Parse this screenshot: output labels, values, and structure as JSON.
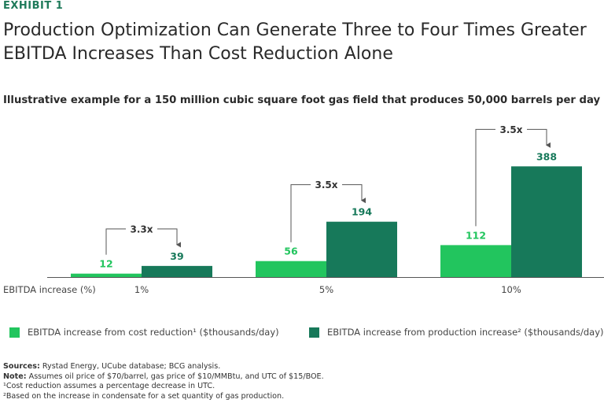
{
  "exhibit_label": "EXHIBIT 1",
  "title": "Production Optimization Can Generate Three to Four Times Greater EBITDA Increases Than Cost Reduction Alone",
  "subtitle": "Illustrative example for a 150 million cubic square foot gas field that produces 50,000 barrels per day",
  "colors": {
    "cost": "#22c55e",
    "production": "#17795a",
    "accent": "#1f7a5a",
    "axis": "#555555"
  },
  "chart_data": {
    "type": "bar",
    "title": "Illustrative example for a 150 million cubic square foot gas field that produces 50,000 barrels per day",
    "xlabel": "EBITDA increase (%)",
    "ylabel": "",
    "categories": [
      "1%",
      "5%",
      "10%"
    ],
    "series": [
      {
        "name": "EBITDA increase from cost reduction¹ ($thousands/day)",
        "values": [
          12,
          56,
          112
        ]
      },
      {
        "name": "EBITDA increase from production increase² ($thousands/day)",
        "values": [
          39,
          194,
          388
        ]
      }
    ],
    "multipliers": [
      "3.3x",
      "3.5x",
      "3.5x"
    ],
    "ylim": [
      0,
      400
    ],
    "grid": false,
    "legend": "bottom"
  },
  "legend": {
    "cost": "EBITDA increase from cost reduction¹ ($thousands/day)",
    "production": "EBITDA increase from production increase² ($thousands/day)"
  },
  "notes": {
    "sources_label": "Sources:",
    "sources": "Rystad Energy, UCube database; BCG analysis.",
    "note_label": "Note:",
    "note": "Assumes oil price of $70/barrel, gas price of $10/MMBtu, and UTC of $15/BOE.",
    "footnote1": "¹Cost reduction assumes a percentage decrease in UTC.",
    "footnote2": "²Based on the increase in condensate for a set quantity of gas production."
  }
}
